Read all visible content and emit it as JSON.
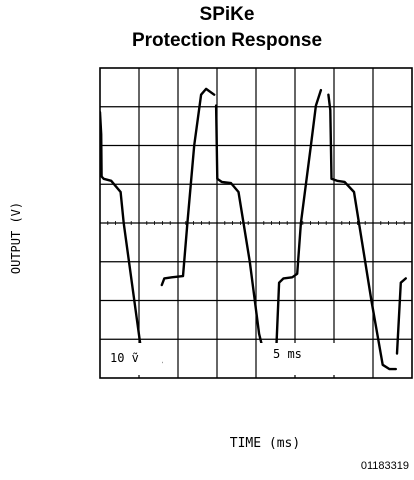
{
  "chart_data": {
    "type": "line",
    "title": "SPiKe",
    "subtitle": "Protection Response",
    "xlabel": "TIME (ms)",
    "ylabel": "OUTPUT (V)",
    "grid": true,
    "xlim": [
      0,
      50
    ],
    "ylim": [
      -40,
      40
    ],
    "annotations": {
      "vertical_scale": "10 ṽ",
      "horizontal_scale": "5 ms"
    },
    "series": [
      {
        "values": [
          [
            0.0,
            28.6
          ],
          [
            0.2,
            22.9
          ],
          [
            0.25,
            12.0
          ],
          [
            0.6,
            11.4
          ],
          [
            1.8,
            10.9
          ],
          [
            3.3,
            8.0
          ],
          [
            3.8,
            0.0
          ],
          [
            5.5,
            -20.0
          ],
          [
            6.9,
            -36.6
          ],
          [
            7.8,
            -37.7
          ],
          [
            8.9,
            -37.7
          ],
          [
            9.0,
            -33.7
          ],
          [
            9.8,
            -36.0
          ],
          [
            9.9,
            -16.0
          ],
          [
            10.3,
            -14.3
          ],
          [
            11.5,
            -14.0
          ],
          [
            13.3,
            -13.7
          ],
          [
            14.0,
            0.0
          ],
          [
            15.1,
            20.0
          ],
          [
            16.2,
            33.1
          ],
          [
            17.0,
            34.6
          ],
          [
            18.3,
            33.1
          ],
          [
            18.6,
            30.3
          ],
          [
            18.8,
            11.4
          ],
          [
            19.5,
            10.6
          ],
          [
            21.0,
            10.3
          ],
          [
            22.2,
            8.0
          ],
          [
            24.0,
            -10.0
          ],
          [
            25.5,
            -28.6
          ],
          [
            26.8,
            -37.1
          ],
          [
            28.0,
            -37.7
          ],
          [
            28.2,
            -34.3
          ],
          [
            28.7,
            -15.4
          ],
          [
            29.4,
            -14.3
          ],
          [
            30.8,
            -14.0
          ],
          [
            31.6,
            -13.1
          ],
          [
            32.2,
            0.0
          ],
          [
            33.8,
            20.0
          ],
          [
            34.6,
            30.3
          ],
          [
            35.4,
            34.3
          ],
          [
            36.6,
            33.1
          ],
          [
            36.9,
            29.1
          ],
          [
            37.1,
            11.4
          ],
          [
            38.0,
            10.9
          ],
          [
            39.2,
            10.6
          ],
          [
            40.7,
            8.0
          ],
          [
            42.0,
            -5.0
          ],
          [
            43.5,
            -20.0
          ],
          [
            45.3,
            -36.6
          ],
          [
            46.4,
            -37.7
          ],
          [
            47.4,
            -37.7
          ],
          [
            47.6,
            -33.7
          ],
          [
            48.2,
            -15.4
          ],
          [
            49.0,
            -14.3
          ],
          [
            50.0,
            -14.3
          ]
        ],
        "segments": [
          [
            0,
            12
          ],
          [
            13,
            21
          ],
          [
            22,
            30
          ],
          [
            31,
            39
          ],
          [
            40,
            50
          ],
          [
            51,
            53
          ]
        ]
      },
      {
        "values": [
          [
            52.0,
            -13.7
          ],
          [
            53.0,
            -12.6
          ],
          [
            53.8,
            0.0
          ],
          [
            55.8,
            20.0
          ],
          [
            57.0,
            32.0
          ],
          [
            58.2,
            34.6
          ],
          [
            60.0,
            34.3
          ]
        ]
      }
    ]
  },
  "figure_id": "01183319"
}
